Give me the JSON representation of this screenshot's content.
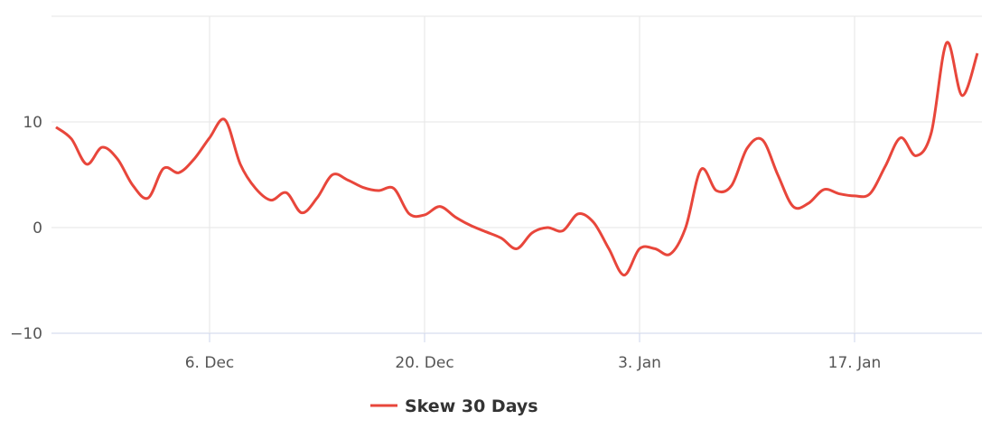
{
  "chart_data": {
    "type": "line",
    "categories": [
      null,
      null,
      null,
      null,
      null,
      null,
      null,
      null,
      null,
      null,
      "6. Dec",
      null,
      null,
      null,
      null,
      null,
      null,
      null,
      null,
      null,
      null,
      null,
      null,
      null,
      "20. Dec",
      null,
      null,
      null,
      null,
      null,
      null,
      null,
      null,
      null,
      null,
      null,
      null,
      null,
      "3. Jan",
      null,
      null,
      null,
      null,
      null,
      null,
      null,
      null,
      null,
      null,
      null,
      null,
      null,
      "17. Jan",
      null,
      null,
      null,
      null,
      null,
      null,
      null,
      null
    ],
    "series": [
      {
        "name": "Skew 30 Days",
        "color": "#e8463b",
        "values": [
          9.5,
          8.4,
          6,
          7.6,
          6.5,
          4,
          2.8,
          5.6,
          5.2,
          6.5,
          8.5,
          10.2,
          6,
          3.7,
          2.6,
          3.3,
          1.4,
          2.8,
          5,
          4.5,
          3.8,
          3.5,
          3.7,
          1.3,
          1.2,
          2,
          1,
          0.2,
          -0.4,
          -1,
          -2,
          -0.5,
          0,
          -0.3,
          1.3,
          0.5,
          -2,
          -4.5,
          -2,
          -2,
          -2.5,
          0,
          5.5,
          3.5,
          4,
          7.5,
          8.3,
          5,
          2,
          2.3,
          3.6,
          3.2,
          3,
          3.2,
          5.8,
          8.5,
          6.8,
          9,
          17.5,
          12.5,
          16.5
        ]
      }
    ],
    "ylim": [
      -10,
      20
    ],
    "yticks": [
      {
        "value": -10,
        "label": "−10"
      },
      0,
      10
    ],
    "grid": true
  }
}
